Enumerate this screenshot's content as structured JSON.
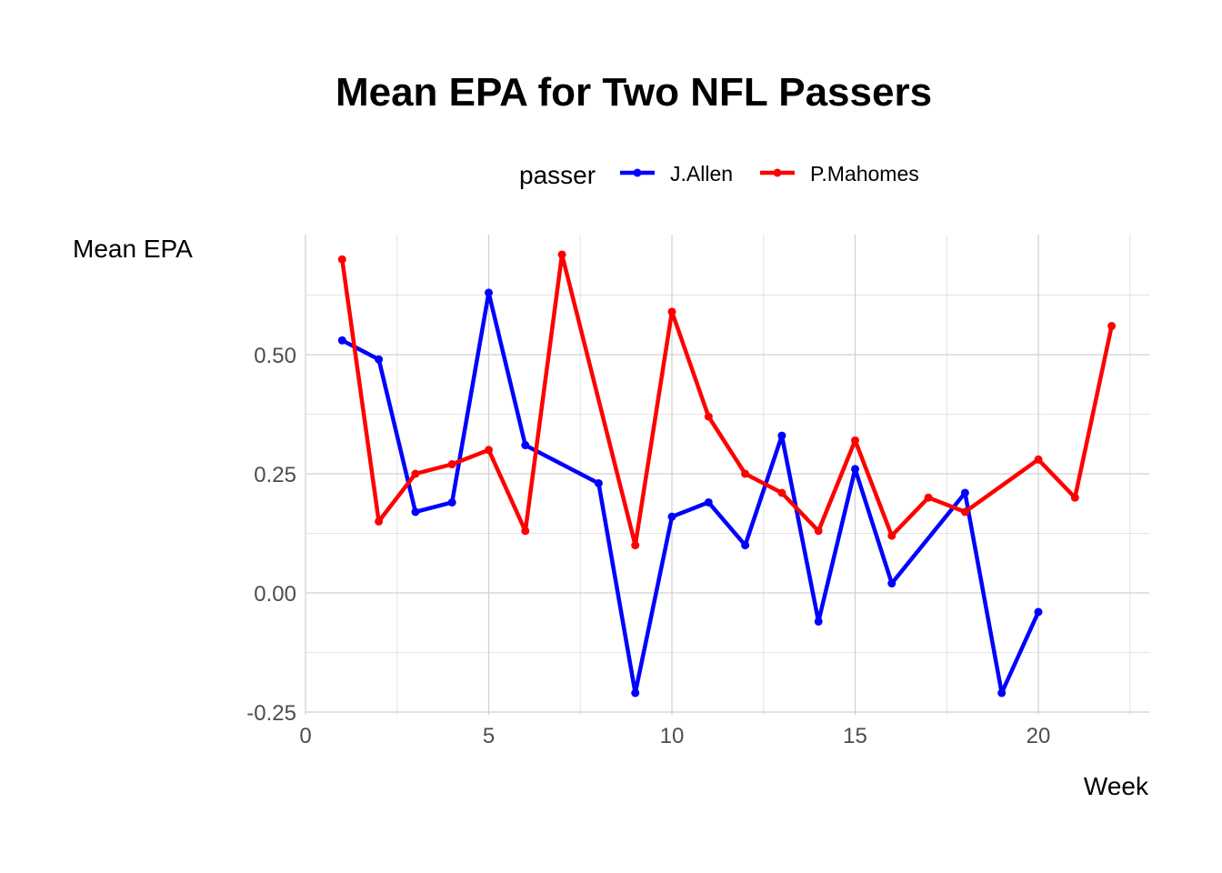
{
  "chart_data": {
    "type": "line",
    "title": "Mean EPA for Two NFL Passers",
    "xlabel": "Week",
    "ylabel": "Mean EPA",
    "xlim": [
      0,
      23
    ],
    "ylim": [
      -0.25,
      0.75
    ],
    "x_ticks": [
      0,
      5,
      10,
      15,
      20
    ],
    "y_ticks": [
      -0.25,
      0.0,
      0.25,
      0.5
    ],
    "x_tick_labels": [
      "0",
      "5",
      "10",
      "15",
      "20"
    ],
    "y_tick_labels": [
      "-0.25",
      "0.00",
      "0.25",
      "0.50"
    ],
    "grid": true,
    "legend": {
      "title": "passer",
      "position": "top"
    },
    "series": [
      {
        "name": "J.Allen",
        "color": "#0000ff",
        "x": [
          1,
          2,
          3,
          4,
          5,
          6,
          8,
          9,
          10,
          11,
          12,
          13,
          14,
          15,
          16,
          18,
          19,
          20
        ],
        "y": [
          0.53,
          0.49,
          0.17,
          0.19,
          0.63,
          0.31,
          0.23,
          -0.21,
          0.16,
          0.19,
          0.1,
          0.33,
          -0.06,
          0.26,
          0.02,
          0.21,
          -0.21,
          -0.04
        ]
      },
      {
        "name": "P.Mahomes",
        "color": "#ff0000",
        "x": [
          1,
          2,
          3,
          4,
          5,
          6,
          7,
          9,
          10,
          11,
          12,
          13,
          14,
          15,
          16,
          17,
          18,
          20,
          21,
          22
        ],
        "y": [
          0.7,
          0.15,
          0.25,
          0.27,
          0.3,
          0.13,
          0.71,
          0.1,
          0.59,
          0.37,
          0.25,
          0.21,
          0.13,
          0.32,
          0.12,
          0.2,
          0.17,
          0.28,
          0.2,
          0.56
        ]
      }
    ]
  }
}
